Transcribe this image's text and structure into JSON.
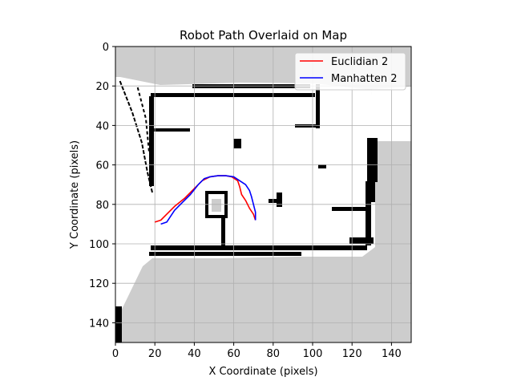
{
  "chart_data": {
    "type": "line",
    "title": "Robot Path Overlaid on Map",
    "xlabel": "X Coordinate (pixels)",
    "ylabel": "Y Coordinate (pixels)",
    "xlim": [
      0,
      150
    ],
    "ylim": [
      150,
      0
    ],
    "grid": true,
    "legend_position": "top-right",
    "x_ticks": [
      0,
      20,
      40,
      60,
      80,
      100,
      120,
      140
    ],
    "y_ticks": [
      0,
      20,
      40,
      60,
      80,
      100,
      120,
      140
    ],
    "background": "occupancy-grid map",
    "series": [
      {
        "name": "Euclidian 2",
        "color": "#ff0000",
        "points": [
          [
            20,
            89
          ],
          [
            23,
            88
          ],
          [
            26,
            85
          ],
          [
            30,
            81
          ],
          [
            35,
            77
          ],
          [
            40,
            72
          ],
          [
            44,
            68
          ],
          [
            48,
            66
          ],
          [
            52,
            65.5
          ],
          [
            56,
            65.5
          ],
          [
            59,
            66
          ],
          [
            62,
            68
          ],
          [
            63,
            71
          ],
          [
            64,
            75
          ],
          [
            66,
            78
          ],
          [
            68,
            82
          ],
          [
            70,
            85
          ],
          [
            71,
            88
          ]
        ]
      },
      {
        "name": "Manhatten 2",
        "color": "#0000ff",
        "points": [
          [
            23,
            90
          ],
          [
            26,
            89
          ],
          [
            28,
            86
          ],
          [
            30,
            83
          ],
          [
            34,
            79
          ],
          [
            38,
            75
          ],
          [
            42,
            70
          ],
          [
            45,
            67
          ],
          [
            48,
            66
          ],
          [
            52,
            65.5
          ],
          [
            56,
            65.5
          ],
          [
            60,
            66
          ],
          [
            63,
            68
          ],
          [
            66,
            70
          ],
          [
            68,
            73
          ],
          [
            69,
            76
          ],
          [
            70,
            80
          ],
          [
            71,
            84
          ],
          [
            71,
            88
          ]
        ]
      }
    ]
  }
}
